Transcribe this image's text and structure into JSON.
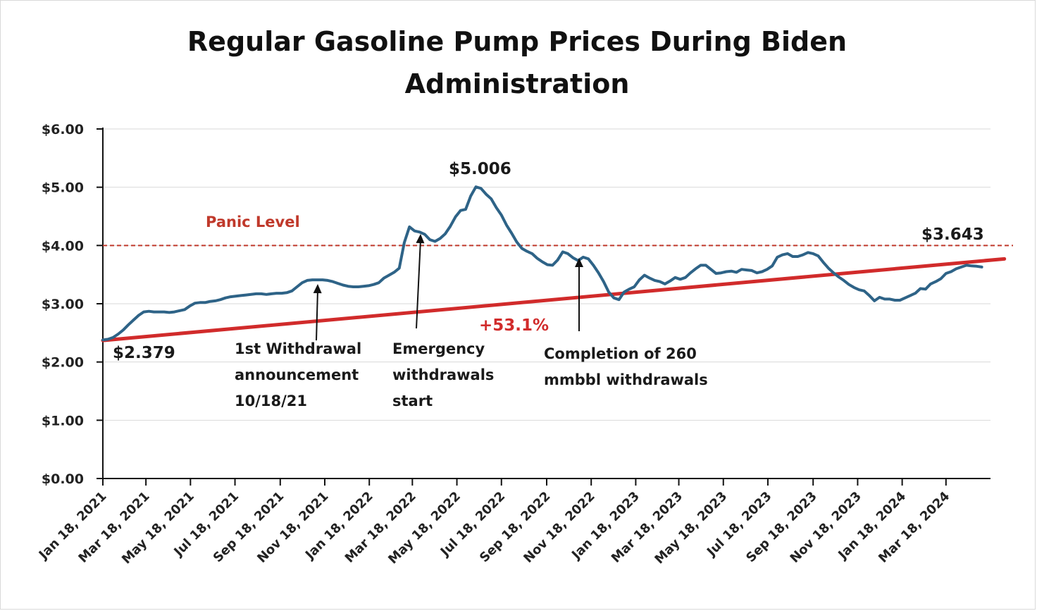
{
  "chart_data": {
    "type": "line",
    "title_lines": [
      "Regular Gasoline Pump Prices During Biden",
      "Administration"
    ],
    "ylim": [
      0,
      6
    ],
    "y_ticks": [
      {
        "value": 0,
        "label": "$0.00"
      },
      {
        "value": 1,
        "label": "$1.00"
      },
      {
        "value": 2,
        "label": "$2.00"
      },
      {
        "value": 3,
        "label": "$3.00"
      },
      {
        "value": 4,
        "label": "$4.00"
      },
      {
        "value": 5,
        "label": "$5.00"
      },
      {
        "value": 6,
        "label": "$6.00"
      }
    ],
    "x_range": [
      "2021-01-18",
      "2024-05-18"
    ],
    "x_ticks": [
      {
        "date": "2021-01-18",
        "label": "Jan 18, 2021"
      },
      {
        "date": "2021-03-18",
        "label": "Mar 18, 2021"
      },
      {
        "date": "2021-05-18",
        "label": "May 18, 2021"
      },
      {
        "date": "2021-07-18",
        "label": "Jul 18, 2021"
      },
      {
        "date": "2021-09-18",
        "label": "Sep 18, 2021"
      },
      {
        "date": "2021-11-18",
        "label": "Nov 18, 2021"
      },
      {
        "date": "2022-01-18",
        "label": "Jan 18, 2022"
      },
      {
        "date": "2022-03-18",
        "label": "Mar 18, 2022"
      },
      {
        "date": "2022-05-18",
        "label": "May 18, 2022"
      },
      {
        "date": "2022-07-18",
        "label": "Jul 18, 2022"
      },
      {
        "date": "2022-09-18",
        "label": "Sep 18, 2022"
      },
      {
        "date": "2022-11-18",
        "label": "Nov 18, 2022"
      },
      {
        "date": "2023-01-18",
        "label": "Jan 18, 2023"
      },
      {
        "date": "2023-03-18",
        "label": "Mar 18, 2023"
      },
      {
        "date": "2023-05-18",
        "label": "May 18, 2023"
      },
      {
        "date": "2023-07-18",
        "label": "Jul 18, 2023"
      },
      {
        "date": "2023-09-18",
        "label": "Sep 18, 2023"
      },
      {
        "date": "2023-11-18",
        "label": "Nov 18, 2023"
      },
      {
        "date": "2024-01-18",
        "label": "Jan 18, 2024"
      },
      {
        "date": "2024-03-18",
        "label": "Mar 18, 2024"
      }
    ],
    "grid": true,
    "series": [
      {
        "color": "#2e6387",
        "points": [
          [
            "2021-01-18",
            2.38
          ],
          [
            "2021-01-25",
            2.39
          ],
          [
            "2021-02-01",
            2.42
          ],
          [
            "2021-02-08",
            2.48
          ],
          [
            "2021-02-15",
            2.55
          ],
          [
            "2021-02-22",
            2.64
          ],
          [
            "2021-03-01",
            2.72
          ],
          [
            "2021-03-08",
            2.8
          ],
          [
            "2021-03-15",
            2.86
          ],
          [
            "2021-03-22",
            2.87
          ],
          [
            "2021-03-29",
            2.86
          ],
          [
            "2021-04-05",
            2.86
          ],
          [
            "2021-04-12",
            2.86
          ],
          [
            "2021-04-19",
            2.85
          ],
          [
            "2021-04-26",
            2.86
          ],
          [
            "2021-05-03",
            2.88
          ],
          [
            "2021-05-10",
            2.9
          ],
          [
            "2021-05-17",
            2.96
          ],
          [
            "2021-05-24",
            3.01
          ],
          [
            "2021-05-31",
            3.02
          ],
          [
            "2021-06-07",
            3.02
          ],
          [
            "2021-06-14",
            3.04
          ],
          [
            "2021-06-21",
            3.05
          ],
          [
            "2021-06-28",
            3.07
          ],
          [
            "2021-07-05",
            3.1
          ],
          [
            "2021-07-12",
            3.12
          ],
          [
            "2021-07-19",
            3.13
          ],
          [
            "2021-07-26",
            3.14
          ],
          [
            "2021-08-02",
            3.15
          ],
          [
            "2021-08-09",
            3.16
          ],
          [
            "2021-08-16",
            3.17
          ],
          [
            "2021-08-23",
            3.17
          ],
          [
            "2021-08-30",
            3.16
          ],
          [
            "2021-09-06",
            3.17
          ],
          [
            "2021-09-13",
            3.18
          ],
          [
            "2021-09-20",
            3.18
          ],
          [
            "2021-09-27",
            3.19
          ],
          [
            "2021-10-04",
            3.22
          ],
          [
            "2021-10-11",
            3.29
          ],
          [
            "2021-10-18",
            3.36
          ],
          [
            "2021-10-25",
            3.4
          ],
          [
            "2021-11-01",
            3.41
          ],
          [
            "2021-11-08",
            3.41
          ],
          [
            "2021-11-15",
            3.41
          ],
          [
            "2021-11-22",
            3.4
          ],
          [
            "2021-11-29",
            3.38
          ],
          [
            "2021-12-06",
            3.35
          ],
          [
            "2021-12-13",
            3.32
          ],
          [
            "2021-12-20",
            3.3
          ],
          [
            "2021-12-27",
            3.29
          ],
          [
            "2022-01-03",
            3.29
          ],
          [
            "2022-01-10",
            3.3
          ],
          [
            "2022-01-17",
            3.31
          ],
          [
            "2022-01-24",
            3.33
          ],
          [
            "2022-01-31",
            3.36
          ],
          [
            "2022-02-07",
            3.44
          ],
          [
            "2022-02-14",
            3.49
          ],
          [
            "2022-02-21",
            3.54
          ],
          [
            "2022-02-28",
            3.61
          ],
          [
            "2022-03-07",
            4.05
          ],
          [
            "2022-03-14",
            4.32
          ],
          [
            "2022-03-21",
            4.25
          ],
          [
            "2022-03-28",
            4.23
          ],
          [
            "2022-04-04",
            4.19
          ],
          [
            "2022-04-11",
            4.1
          ],
          [
            "2022-04-18",
            4.07
          ],
          [
            "2022-04-25",
            4.12
          ],
          [
            "2022-05-02",
            4.2
          ],
          [
            "2022-05-09",
            4.33
          ],
          [
            "2022-05-16",
            4.49
          ],
          [
            "2022-05-23",
            4.6
          ],
          [
            "2022-05-30",
            4.62
          ],
          [
            "2022-06-06",
            4.85
          ],
          [
            "2022-06-13",
            5.006
          ],
          [
            "2022-06-20",
            4.98
          ],
          [
            "2022-06-27",
            4.88
          ],
          [
            "2022-07-04",
            4.8
          ],
          [
            "2022-07-11",
            4.65
          ],
          [
            "2022-07-18",
            4.52
          ],
          [
            "2022-07-25",
            4.35
          ],
          [
            "2022-08-01",
            4.21
          ],
          [
            "2022-08-08",
            4.06
          ],
          [
            "2022-08-15",
            3.95
          ],
          [
            "2022-08-22",
            3.9
          ],
          [
            "2022-08-29",
            3.86
          ],
          [
            "2022-09-05",
            3.78
          ],
          [
            "2022-09-12",
            3.72
          ],
          [
            "2022-09-19",
            3.67
          ],
          [
            "2022-09-26",
            3.66
          ],
          [
            "2022-10-03",
            3.75
          ],
          [
            "2022-10-10",
            3.89
          ],
          [
            "2022-10-17",
            3.86
          ],
          [
            "2022-10-24",
            3.79
          ],
          [
            "2022-10-31",
            3.74
          ],
          [
            "2022-11-07",
            3.8
          ],
          [
            "2022-11-14",
            3.77
          ],
          [
            "2022-11-21",
            3.66
          ],
          [
            "2022-11-28",
            3.53
          ],
          [
            "2022-12-05",
            3.38
          ],
          [
            "2022-12-12",
            3.2
          ],
          [
            "2022-12-19",
            3.1
          ],
          [
            "2022-12-26",
            3.07
          ],
          [
            "2023-01-02",
            3.2
          ],
          [
            "2023-01-09",
            3.25
          ],
          [
            "2023-01-16",
            3.29
          ],
          [
            "2023-01-23",
            3.41
          ],
          [
            "2023-01-30",
            3.49
          ],
          [
            "2023-02-06",
            3.44
          ],
          [
            "2023-02-13",
            3.4
          ],
          [
            "2023-02-20",
            3.38
          ],
          [
            "2023-02-27",
            3.34
          ],
          [
            "2023-03-06",
            3.39
          ],
          [
            "2023-03-13",
            3.45
          ],
          [
            "2023-03-20",
            3.42
          ],
          [
            "2023-03-27",
            3.45
          ],
          [
            "2023-04-03",
            3.53
          ],
          [
            "2023-04-10",
            3.6
          ],
          [
            "2023-04-17",
            3.66
          ],
          [
            "2023-04-24",
            3.66
          ],
          [
            "2023-05-01",
            3.59
          ],
          [
            "2023-05-08",
            3.52
          ],
          [
            "2023-05-15",
            3.53
          ],
          [
            "2023-05-22",
            3.55
          ],
          [
            "2023-05-29",
            3.56
          ],
          [
            "2023-06-05",
            3.54
          ],
          [
            "2023-06-12",
            3.59
          ],
          [
            "2023-06-19",
            3.58
          ],
          [
            "2023-06-26",
            3.57
          ],
          [
            "2023-07-03",
            3.53
          ],
          [
            "2023-07-10",
            3.55
          ],
          [
            "2023-07-17",
            3.59
          ],
          [
            "2023-07-24",
            3.65
          ],
          [
            "2023-07-31",
            3.8
          ],
          [
            "2023-08-07",
            3.84
          ],
          [
            "2023-08-14",
            3.86
          ],
          [
            "2023-08-21",
            3.81
          ],
          [
            "2023-08-28",
            3.81
          ],
          [
            "2023-09-04",
            3.84
          ],
          [
            "2023-09-11",
            3.88
          ],
          [
            "2023-09-18",
            3.86
          ],
          [
            "2023-09-25",
            3.82
          ],
          [
            "2023-10-02",
            3.71
          ],
          [
            "2023-10-09",
            3.61
          ],
          [
            "2023-10-16",
            3.53
          ],
          [
            "2023-10-23",
            3.46
          ],
          [
            "2023-10-30",
            3.4
          ],
          [
            "2023-11-06",
            3.33
          ],
          [
            "2023-11-13",
            3.28
          ],
          [
            "2023-11-20",
            3.24
          ],
          [
            "2023-11-27",
            3.22
          ],
          [
            "2023-12-04",
            3.14
          ],
          [
            "2023-12-11",
            3.05
          ],
          [
            "2023-12-18",
            3.11
          ],
          [
            "2023-12-25",
            3.08
          ],
          [
            "2024-01-01",
            3.08
          ],
          [
            "2024-01-08",
            3.06
          ],
          [
            "2024-01-15",
            3.06
          ],
          [
            "2024-01-22",
            3.1
          ],
          [
            "2024-01-29",
            3.14
          ],
          [
            "2024-02-05",
            3.18
          ],
          [
            "2024-02-12",
            3.26
          ],
          [
            "2024-02-19",
            3.25
          ],
          [
            "2024-02-26",
            3.34
          ],
          [
            "2024-03-04",
            3.38
          ],
          [
            "2024-03-11",
            3.43
          ],
          [
            "2024-03-18",
            3.52
          ],
          [
            "2024-03-25",
            3.55
          ],
          [
            "2024-04-01",
            3.6
          ],
          [
            "2024-04-08",
            3.63
          ],
          [
            "2024-04-15",
            3.66
          ],
          [
            "2024-04-22",
            3.65
          ],
          [
            "2024-04-29",
            3.643
          ],
          [
            "2024-05-06",
            3.63
          ]
        ]
      }
    ],
    "trend_line": {
      "color": "#d12b2b",
      "from": [
        "2021-01-18",
        2.37
      ],
      "to": [
        "2024-06-06",
        3.77
      ]
    },
    "reference_line": {
      "value": 4.0,
      "color": "#c0392b",
      "style": "dashed",
      "label": "Panic Level"
    },
    "annotations": [
      {
        "id": "start",
        "text": "$2.379",
        "date": "2021-01-18",
        "value": 2.379
      },
      {
        "id": "peak",
        "text": "$5.006",
        "date": "2022-06-13",
        "value": 5.006
      },
      {
        "id": "end",
        "text": "$3.643",
        "date": "2024-04-29",
        "value": 3.643
      },
      {
        "id": "pct",
        "text": "+53.1%"
      },
      {
        "id": "withdrawal-1",
        "lines": [
          "1st Withdrawal",
          "announcement",
          "10/18/21"
        ],
        "date": "2021-11-18"
      },
      {
        "id": "emergency",
        "lines": [
          "Emergency",
          "withdrawals",
          "start"
        ],
        "date": "2022-03-18"
      },
      {
        "id": "completion",
        "lines": [
          "Completion of 260",
          "mmbbl withdrawals"
        ],
        "date": "2022-10-25"
      }
    ]
  }
}
